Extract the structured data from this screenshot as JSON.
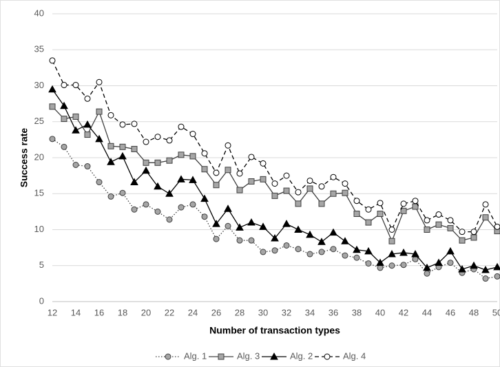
{
  "chart_data": {
    "type": "line",
    "x_label": "Number of transaction types",
    "y_label": "Success rate",
    "x": [
      12,
      13,
      14,
      15,
      16,
      17,
      18,
      19,
      20,
      21,
      22,
      23,
      24,
      25,
      26,
      27,
      28,
      29,
      30,
      31,
      32,
      33,
      34,
      35,
      36,
      37,
      38,
      39,
      40,
      41,
      42,
      43,
      44,
      45,
      46,
      47,
      48,
      49,
      50
    ],
    "xlim": [
      12,
      50
    ],
    "xticks": [
      12,
      14,
      16,
      18,
      20,
      22,
      24,
      26,
      28,
      30,
      32,
      34,
      36,
      38,
      40,
      42,
      44,
      46,
      48,
      50
    ],
    "ylim": [
      0,
      40
    ],
    "yticks": [
      0,
      5,
      10,
      15,
      20,
      25,
      30,
      35,
      40
    ],
    "grid": true,
    "legend": "bottom",
    "series": [
      {
        "name": "Alg. 1",
        "color": "#404040",
        "marker": "circle",
        "marker_fill": "#a6a6a6",
        "dash": "dotted",
        "values": [
          22.6,
          21.5,
          19.0,
          18.8,
          16.6,
          14.6,
          15.1,
          12.8,
          13.5,
          12.5,
          11.4,
          13.1,
          13.5,
          11.8,
          8.7,
          10.5,
          8.5,
          8.5,
          6.9,
          7.1,
          7.8,
          7.3,
          6.6,
          6.9,
          7.3,
          6.4,
          6.1,
          5.3,
          4.7,
          5.0,
          5.1,
          5.9,
          3.9,
          4.8,
          5.4,
          4.0,
          4.5,
          3.2,
          3.5
        ]
      },
      {
        "name": "Alg. 3",
        "color": "#404040",
        "marker": "square",
        "marker_fill": "#a6a6a6",
        "dash": "solid",
        "values": [
          27.1,
          25.4,
          25.7,
          23.2,
          26.4,
          21.6,
          21.5,
          21.2,
          19.3,
          19.3,
          19.6,
          20.4,
          20.2,
          18.4,
          16.2,
          18.3,
          15.5,
          16.7,
          17.0,
          14.7,
          15.4,
          13.6,
          15.7,
          13.6,
          15.0,
          15.1,
          12.2,
          11.0,
          12.2,
          8.4,
          12.6,
          13.2,
          10.0,
          10.7,
          10.2,
          8.5,
          8.9,
          11.7,
          9.8
        ]
      },
      {
        "name": "Alg. 2",
        "color": "#000000",
        "marker": "triangle",
        "marker_fill": "#000000",
        "dash": "solid",
        "values": [
          29.5,
          27.2,
          23.8,
          24.6,
          22.6,
          19.4,
          20.2,
          16.6,
          18.2,
          16.0,
          15.0,
          17.0,
          16.9,
          14.3,
          10.8,
          12.9,
          10.3,
          11.0,
          10.4,
          8.8,
          10.8,
          10.0,
          9.3,
          8.3,
          9.6,
          8.4,
          7.2,
          7.0,
          5.4,
          6.6,
          6.8,
          6.6,
          4.7,
          5.4,
          7.0,
          4.5,
          5.0,
          4.4,
          4.8
        ]
      },
      {
        "name": "Alg. 4",
        "color": "#000000",
        "marker": "circle",
        "marker_fill": "#ffffff",
        "dash": "dashed",
        "values": [
          33.5,
          30.1,
          30.1,
          28.2,
          30.5,
          25.9,
          24.6,
          24.7,
          22.2,
          22.9,
          22.4,
          24.3,
          23.3,
          20.6,
          17.9,
          21.7,
          17.8,
          20.1,
          19.2,
          16.4,
          17.5,
          15.2,
          16.8,
          16.0,
          17.3,
          16.4,
          14.0,
          12.8,
          13.7,
          10.0,
          13.6,
          14.0,
          11.3,
          12.1,
          11.3,
          9.7,
          9.7,
          13.5,
          10.4
        ]
      }
    ]
  }
}
